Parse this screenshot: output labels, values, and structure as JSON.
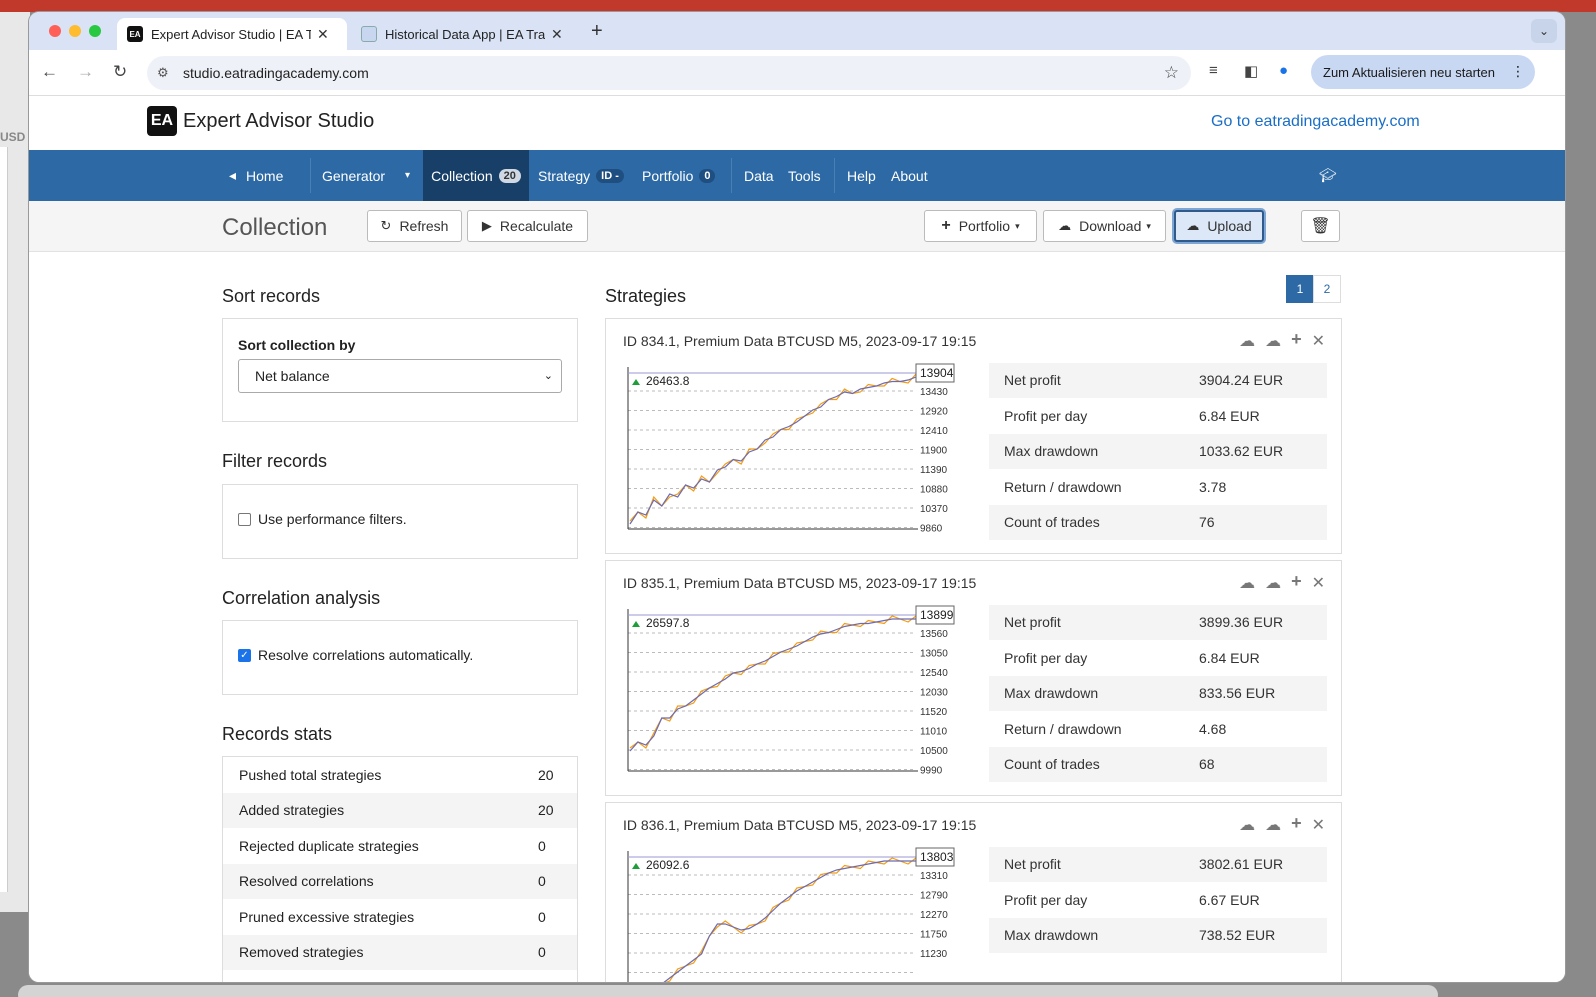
{
  "browser": {
    "tabs": [
      {
        "label": "Expert Advisor Studio | EA Tra",
        "icon": "EA"
      },
      {
        "label": "Historical Data App | EA Tradi",
        "icon": ""
      }
    ],
    "url": "studio.eatradingacademy.com",
    "update_label": "Zum Aktualisieren neu starten"
  },
  "bg_left_label": "USD",
  "brand": {
    "logo": "EA",
    "name": "Expert Advisor Studio",
    "link": "Go to eatradingacademy.com"
  },
  "nav": {
    "home": "Home",
    "generator": "Generator",
    "collection": "Collection",
    "collection_count": "20",
    "strategy": "Strategy",
    "strategy_badge": "ID -",
    "portfolio": "Portfolio",
    "portfolio_count": "0",
    "data": "Data",
    "tools": "Tools",
    "help": "Help",
    "about": "About"
  },
  "cmdbar": {
    "title": "Collection",
    "refresh": "Refresh",
    "recalculate": "Recalculate",
    "portfolio": "Portfolio",
    "download": "Download",
    "upload": "Upload"
  },
  "sort": {
    "heading": "Sort records",
    "label": "Sort collection by",
    "value": "Net balance"
  },
  "filter": {
    "heading": "Filter records",
    "checkbox_label": "Use performance filters."
  },
  "correlation": {
    "heading": "Correlation analysis",
    "checkbox_label": "Resolve correlations automatically."
  },
  "stats": {
    "heading": "Records stats",
    "rows": [
      {
        "k": "Pushed total strategies",
        "v": "20"
      },
      {
        "k": "Added strategies",
        "v": "20"
      },
      {
        "k": "Rejected duplicate strategies",
        "v": "0"
      },
      {
        "k": "Resolved correlations",
        "v": "0"
      },
      {
        "k": "Pruned excessive strategies",
        "v": "0"
      },
      {
        "k": "Removed strategies",
        "v": "0"
      }
    ]
  },
  "strategies": {
    "heading": "Strategies",
    "pages": [
      "1",
      "2"
    ],
    "cards": [
      {
        "title": "ID 834.1, Premium Data BTCUSD M5, 2023-09-17 19:15",
        "peak": "26463.8",
        "last": "13904",
        "ticks": [
          "13430",
          "12920",
          "12410",
          "11900",
          "11390",
          "10880",
          "10370",
          "9860"
        ],
        "metrics": [
          {
            "k": "Net profit",
            "v": "3904.24 EUR"
          },
          {
            "k": "Profit per day",
            "v": "6.84 EUR"
          },
          {
            "k": "Max drawdown",
            "v": "1033.62 EUR"
          },
          {
            "k": "Return / drawdown",
            "v": "3.78"
          },
          {
            "k": "Count of trades",
            "v": "76"
          }
        ]
      },
      {
        "title": "ID 835.1, Premium Data BTCUSD M5, 2023-09-17 19:15",
        "peak": "26597.8",
        "last": "13899",
        "ticks": [
          "13560",
          "13050",
          "12540",
          "12030",
          "11520",
          "11010",
          "10500",
          "9990"
        ],
        "metrics": [
          {
            "k": "Net profit",
            "v": "3899.36 EUR"
          },
          {
            "k": "Profit per day",
            "v": "6.84 EUR"
          },
          {
            "k": "Max drawdown",
            "v": "833.56 EUR"
          },
          {
            "k": "Return / drawdown",
            "v": "4.68"
          },
          {
            "k": "Count of trades",
            "v": "68"
          }
        ]
      },
      {
        "title": "ID 836.1, Premium Data BTCUSD M5, 2023-09-17 19:15",
        "peak": "26092.6",
        "last": "13803",
        "ticks": [
          "13310",
          "12790",
          "12270",
          "11750",
          "11230"
        ],
        "metrics": [
          {
            "k": "Net profit",
            "v": "3802.61 EUR"
          },
          {
            "k": "Profit per day",
            "v": "6.67 EUR"
          },
          {
            "k": "Max drawdown",
            "v": "738.52 EUR"
          }
        ]
      }
    ]
  },
  "colors": {
    "nav_bg": "#2d6aa5",
    "nav_active": "#183f68",
    "balance_line": "#6b6bb3",
    "equity_line": "#f39c12"
  }
}
